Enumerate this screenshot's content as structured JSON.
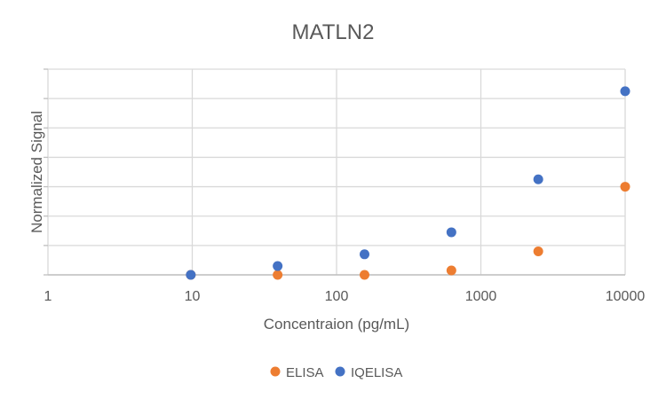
{
  "chart_data": {
    "type": "scatter",
    "title": "MATLN2",
    "xlabel": "Concentraion (pg/mL)",
    "ylabel": "Normalized Signal",
    "xscale": "log",
    "xlim": [
      1,
      10000
    ],
    "ylim": [
      0,
      7
    ],
    "x_tick_labels": [
      "1",
      "10",
      "100",
      "1000",
      "10000"
    ],
    "y_grid_lines": 7,
    "y_tick_labels_shown": false,
    "grid": true,
    "legend_position": "bottom",
    "series": [
      {
        "name": "ELISA",
        "color": "#ED7D31",
        "x": [
          9.77,
          39.06,
          156.25,
          625,
          2500,
          10000
        ],
        "y": [
          0.0,
          0.0,
          0.0,
          0.15,
          0.8,
          3.0
        ]
      },
      {
        "name": "IQELISA",
        "color": "#4472C4",
        "x": [
          9.77,
          39.06,
          156.25,
          625,
          2500,
          10000
        ],
        "y": [
          0.0,
          0.3,
          0.7,
          1.45,
          3.25,
          6.25
        ]
      }
    ]
  }
}
